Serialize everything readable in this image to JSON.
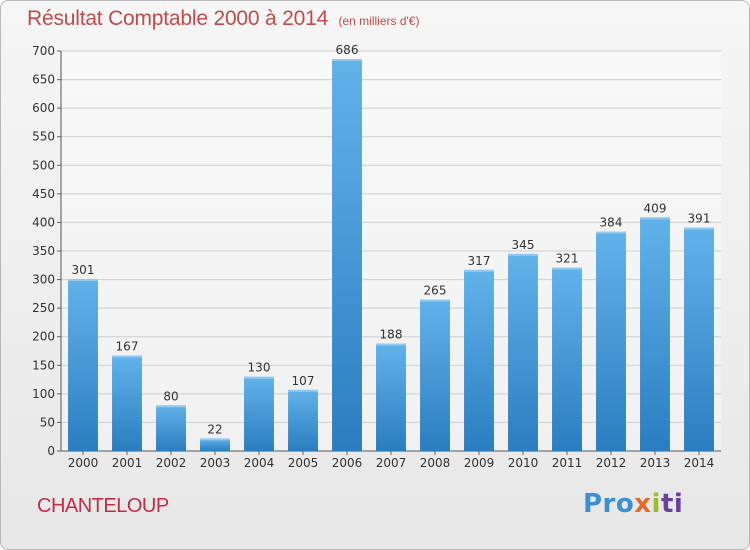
{
  "title": "Résultat Comptable 2000 à 2014",
  "subtitle": "(en milliers d'€)",
  "place": "CHANTELOUP",
  "logo": {
    "p1": "Pro",
    "p2": "x",
    "p3": "i",
    "p4": "ti"
  },
  "colors": {
    "bar_top": "#62b2ea",
    "bar_bottom": "#2a7ec0",
    "title": "#c24a4a",
    "place": "#c72b4a"
  },
  "chart_data": {
    "type": "bar",
    "title": "Résultat Comptable 2000 à 2014",
    "subtitle": "(en milliers d'€)",
    "categories": [
      "2000",
      "2001",
      "2002",
      "2003",
      "2004",
      "2005",
      "2006",
      "2007",
      "2008",
      "2009",
      "2010",
      "2011",
      "2012",
      "2013",
      "2014"
    ],
    "values": [
      301,
      167,
      80,
      22,
      130,
      107,
      686,
      188,
      265,
      317,
      345,
      321,
      384,
      409,
      391
    ],
    "ylim": [
      0,
      700
    ],
    "yticks": [
      0,
      50,
      100,
      150,
      200,
      250,
      300,
      350,
      400,
      450,
      500,
      550,
      600,
      650,
      700
    ],
    "grid": true,
    "data_labels": true
  }
}
